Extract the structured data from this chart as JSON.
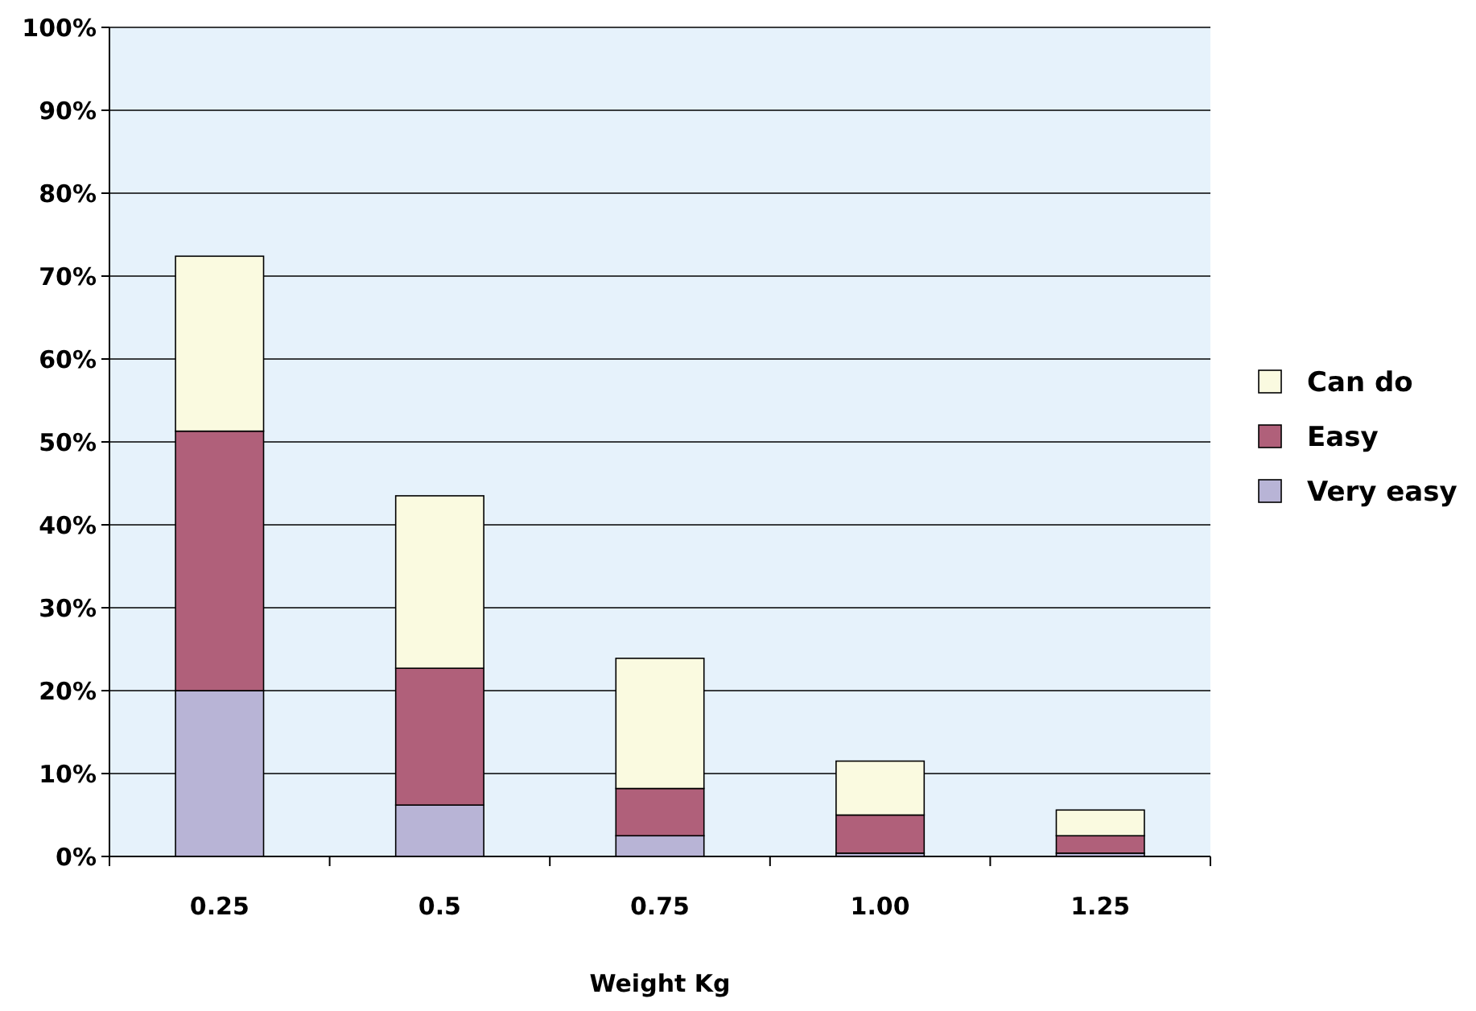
{
  "chart_data": {
    "type": "bar",
    "xlabel": "Weight Kg",
    "categories": [
      "0.25",
      "0.5",
      "0.75",
      "1.00",
      "1.25"
    ],
    "series": [
      {
        "name": "Very easy",
        "color": "#b8b4d6",
        "values": [
          20,
          6.2,
          2.5,
          0.4,
          0.4
        ]
      },
      {
        "name": "Easy",
        "color": "#b0607a",
        "values": [
          31.3,
          16.5,
          5.7,
          4.6,
          2.1
        ]
      },
      {
        "name": "Can do",
        "color": "#fafae0",
        "values": [
          21.1,
          20.8,
          15.7,
          6.5,
          3.1
        ]
      }
    ],
    "stacked": true,
    "ylim": [
      0,
      100
    ],
    "yticks": [
      {
        "value": 0,
        "label": "0%"
      },
      {
        "value": 10,
        "label": "10%"
      },
      {
        "value": 20,
        "label": "20%"
      },
      {
        "value": 30,
        "label": "30%"
      },
      {
        "value": 40,
        "label": "40%"
      },
      {
        "value": 50,
        "label": "50%"
      },
      {
        "value": 60,
        "label": "60%"
      },
      {
        "value": 70,
        "label": "70%"
      },
      {
        "value": 80,
        "label": "80%"
      },
      {
        "value": 90,
        "label": "90%"
      },
      {
        "value": 100,
        "label": "100%"
      }
    ],
    "grid": "y",
    "legend": "right"
  }
}
